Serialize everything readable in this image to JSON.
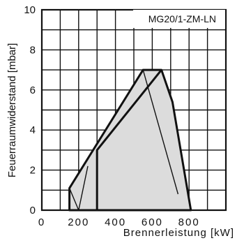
{
  "chart_data": {
    "type": "area",
    "title": "MG20/1-ZM-LN",
    "xlabel": "Brennerleistung  [kW]",
    "ylabel": "Feuerraumwiderstand [mbar]",
    "xlim": [
      0,
      1000
    ],
    "ylim": [
      0,
      10
    ],
    "x_ticks": [
      0,
      200,
      400,
      600,
      800
    ],
    "x_tick_labels": [
      "0",
      "200",
      "400",
      "600",
      "800"
    ],
    "y_ticks": [
      0,
      2,
      4,
      6,
      8,
      10
    ],
    "y_tick_labels": [
      "0",
      "2",
      "4",
      "6",
      "8",
      "10"
    ],
    "grid": true,
    "x_minor_step": 100,
    "y_minor_step": 1,
    "series": [
      {
        "role": "working-field",
        "x": [
          150,
          150,
          550,
          650,
          710,
          810,
          150
        ],
        "y": [
          0,
          1.1,
          7.0,
          7.0,
          5.4,
          0,
          0
        ]
      },
      {
        "role": "inner-boundary-1",
        "x": [
          300,
          300,
          650
        ],
        "y": [
          0,
          3.0,
          7.0
        ]
      },
      {
        "role": "inner-boundary-2",
        "x": [
          550,
          740
        ],
        "y": [
          7.0,
          0.8
        ]
      },
      {
        "role": "inner-boundary-3",
        "x": [
          150,
          200,
          250
        ],
        "y": [
          1.1,
          0,
          2.2
        ]
      }
    ],
    "colors": {
      "fill": "#dcdcdc",
      "stroke": "#111111",
      "grid": "#111111"
    }
  }
}
